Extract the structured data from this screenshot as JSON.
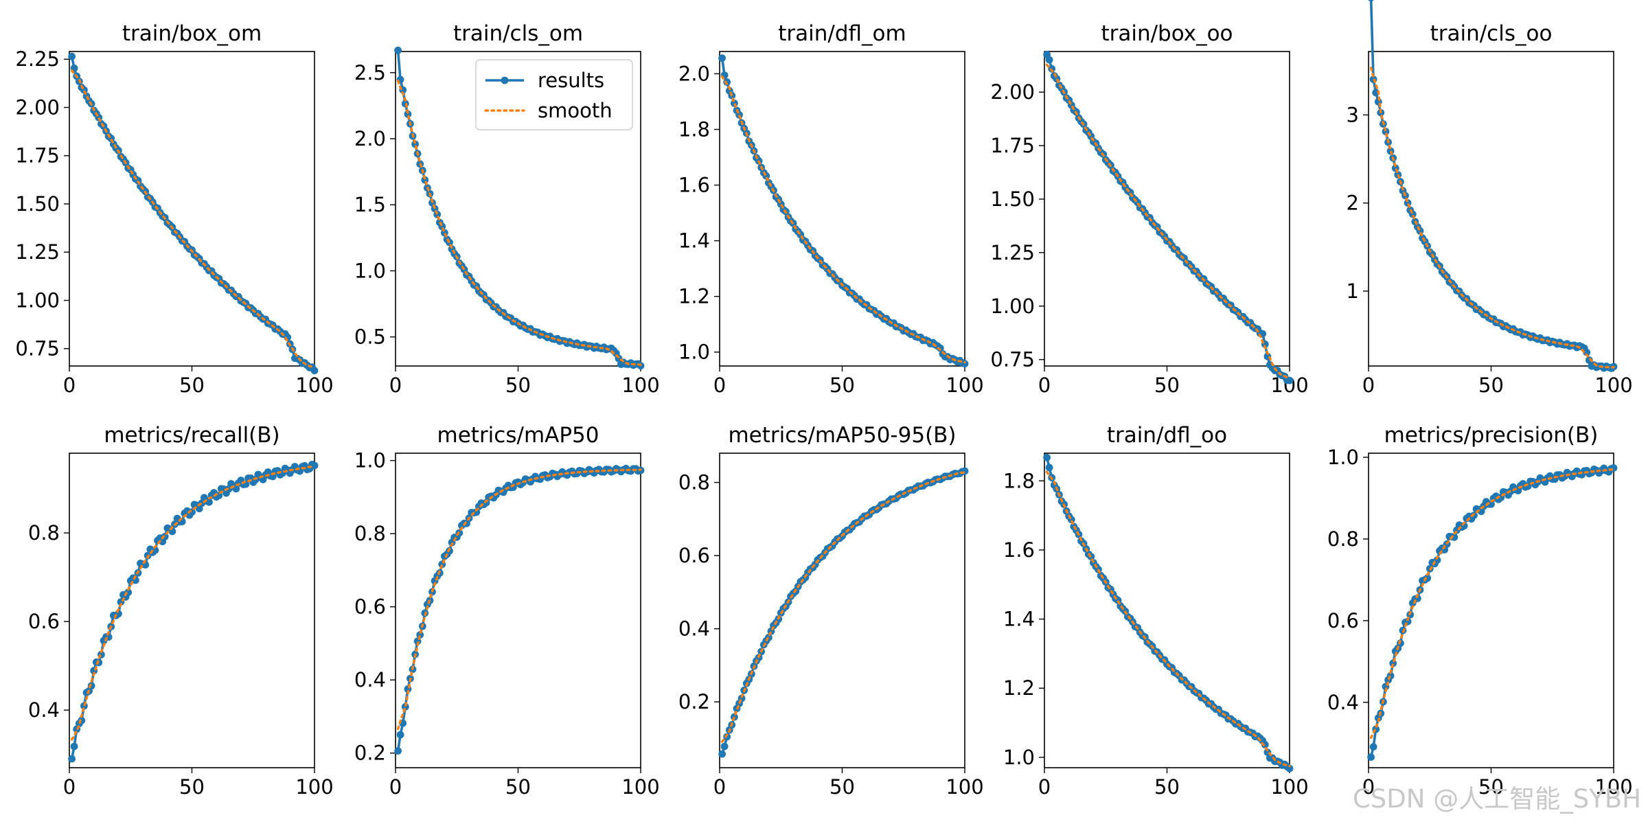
{
  "colors": {
    "results": "#1f77b4",
    "smooth": "#ff7f0e"
  },
  "legend": {
    "location": "top-right",
    "items": [
      "results",
      "smooth"
    ]
  },
  "watermark": {
    "text": "CSDN @人工智能_SYBH"
  },
  "chart_data": [
    {
      "type": "line",
      "title": "train/box_om",
      "xlim": [
        0,
        100
      ],
      "ylim": [
        0.66,
        2.29
      ],
      "xticks": [
        0,
        50,
        100
      ],
      "xtick_labels": [
        "0",
        "50",
        "100"
      ],
      "yticks": [
        0.75,
        1.0,
        1.25,
        1.5,
        1.75,
        2.0,
        2.25
      ],
      "ytick_labels": [
        "0.75",
        "1.00",
        "1.25",
        "1.50",
        "1.75",
        "2.00",
        "2.25"
      ],
      "profile": "decay",
      "y_start": 2.21,
      "y_end": 0.72,
      "k": 1.2,
      "drop_at": 90,
      "drop": 0.08,
      "jumps": [
        [
          2,
          0.05
        ]
      ]
    },
    {
      "type": "line",
      "title": "train/cls_om",
      "xlim": [
        0,
        100
      ],
      "ylim": [
        0.28,
        2.66
      ],
      "xticks": [
        0,
        50,
        100
      ],
      "xtick_labels": [
        "0",
        "50",
        "100"
      ],
      "yticks": [
        0.5,
        1.0,
        1.5,
        2.0,
        2.5
      ],
      "ytick_labels": [
        "0.5",
        "1.0",
        "1.5",
        "2.0",
        "2.5"
      ],
      "profile": "decay",
      "y_start": 2.55,
      "y_end": 0.39,
      "k": 4.5,
      "drop_at": 90,
      "drop": 0.1,
      "jumps": [
        [
          1,
          0.12
        ]
      ]
    },
    {
      "type": "line",
      "title": "train/dfl_om",
      "xlim": [
        0,
        100
      ],
      "ylim": [
        0.95,
        2.08
      ],
      "xticks": [
        0,
        50,
        100
      ],
      "xtick_labels": [
        "0",
        "50",
        "100"
      ],
      "yticks": [
        1.0,
        1.2,
        1.4,
        1.6,
        1.8,
        2.0
      ],
      "ytick_labels": [
        "1.0",
        "1.2",
        "1.4",
        "1.6",
        "1.8",
        "2.0"
      ],
      "profile": "decay",
      "y_start": 2.02,
      "y_end": 0.99,
      "k": 2.3,
      "drop_at": 90,
      "drop": 0.03,
      "jumps": [
        [
          1,
          0.04
        ]
      ]
    },
    {
      "type": "line",
      "title": "train/box_oo",
      "xlim": [
        0,
        100
      ],
      "ylim": [
        0.72,
        2.19
      ],
      "xticks": [
        0,
        50,
        100
      ],
      "xtick_labels": [
        "0",
        "50",
        "100"
      ],
      "yticks": [
        0.75,
        1.0,
        1.25,
        1.5,
        1.75,
        2.0
      ],
      "ytick_labels": [
        "0.75",
        "1.00",
        "1.25",
        "1.50",
        "1.75",
        "2.00"
      ],
      "profile": "decay",
      "y_start": 2.14,
      "y_end": 0.77,
      "k": 0.9,
      "drop_at": 90,
      "drop": 0.12,
      "jumps": [
        [
          3,
          0.04
        ]
      ]
    },
    {
      "type": "line",
      "title": "train/cls_oo",
      "xlim": [
        0,
        100
      ],
      "ylim": [
        0.15,
        3.72
      ],
      "xticks": [
        0,
        50,
        100
      ],
      "xtick_labels": [
        "0",
        "50",
        "100"
      ],
      "yticks": [
        1,
        2,
        3
      ],
      "ytick_labels": [
        "1",
        "2",
        "3"
      ],
      "profile": "decay",
      "y_start": 3.53,
      "y_end": 0.33,
      "k": 4.2,
      "drop_at": 89,
      "drop": 0.2,
      "jumps": [
        [
          1,
          0.8
        ]
      ]
    },
    {
      "type": "line",
      "title": "metrics/recall(B)",
      "xlim": [
        0,
        100
      ],
      "ylim": [
        0.27,
        0.98
      ],
      "xticks": [
        0,
        50,
        100
      ],
      "xtick_labels": [
        "0",
        "50",
        "100"
      ],
      "yticks": [
        0.4,
        0.6,
        0.8
      ],
      "ytick_labels": [
        "0.4",
        "0.6",
        "0.8"
      ],
      "profile": "rise",
      "y_start": 0.3,
      "y_end": 0.95,
      "k": 3.5,
      "noise": 0.012,
      "drop_at": 0,
      "drop": 0,
      "jumps": []
    },
    {
      "type": "line",
      "title": "metrics/mAP50",
      "xlim": [
        0,
        100
      ],
      "ylim": [
        0.16,
        1.02
      ],
      "xticks": [
        0,
        50,
        100
      ],
      "xtick_labels": [
        "0",
        "50",
        "100"
      ],
      "yticks": [
        0.2,
        0.4,
        0.6,
        0.8,
        1.0
      ],
      "ytick_labels": [
        "0.2",
        "0.4",
        "0.6",
        "0.8",
        "1.0"
      ],
      "profile": "rise",
      "y_start": 0.2,
      "y_end": 0.975,
      "k": 6.0,
      "noise": 0.008,
      "drop_at": 0,
      "drop": 0,
      "jumps": []
    },
    {
      "type": "line",
      "title": "metrics/mAP50-95(B)",
      "xlim": [
        0,
        100
      ],
      "ylim": [
        0.02,
        0.88
      ],
      "xticks": [
        0,
        50,
        100
      ],
      "xtick_labels": [
        "0",
        "50",
        "100"
      ],
      "yticks": [
        0.2,
        0.4,
        0.6,
        0.8
      ],
      "ytick_labels": [
        "0.2",
        "0.4",
        "0.6",
        "0.8"
      ],
      "profile": "rise",
      "y_start": 0.06,
      "y_end": 0.83,
      "k": 2.5,
      "noise": 0.004,
      "drop_at": 0,
      "drop": 0,
      "jumps": []
    },
    {
      "type": "line",
      "title": "train/dfl_oo",
      "xlim": [
        0,
        100
      ],
      "ylim": [
        0.97,
        1.88
      ],
      "xticks": [
        0,
        50,
        100
      ],
      "xtick_labels": [
        "0",
        "50",
        "100"
      ],
      "yticks": [
        1.0,
        1.2,
        1.4,
        1.6,
        1.8
      ],
      "ytick_labels": [
        "1.0",
        "1.2",
        "1.4",
        "1.6",
        "1.8"
      ],
      "profile": "decay",
      "y_start": 1.84,
      "y_end": 1.01,
      "k": 1.6,
      "drop_at": 90,
      "drop": 0.04,
      "jumps": [
        [
          2,
          0.03
        ]
      ]
    },
    {
      "type": "line",
      "title": "metrics/precision(B)",
      "xlim": [
        0,
        100
      ],
      "ylim": [
        0.24,
        1.01
      ],
      "xticks": [
        0,
        50,
        100
      ],
      "xtick_labels": [
        "0",
        "50",
        "100"
      ],
      "yticks": [
        0.4,
        0.6,
        0.8,
        1.0
      ],
      "ytick_labels": [
        "0.4",
        "0.6",
        "0.8",
        "1.0"
      ],
      "profile": "rise",
      "y_start": 0.27,
      "y_end": 0.97,
      "k": 4.2,
      "noise": 0.01,
      "drop_at": 0,
      "drop": 0,
      "jumps": []
    }
  ]
}
